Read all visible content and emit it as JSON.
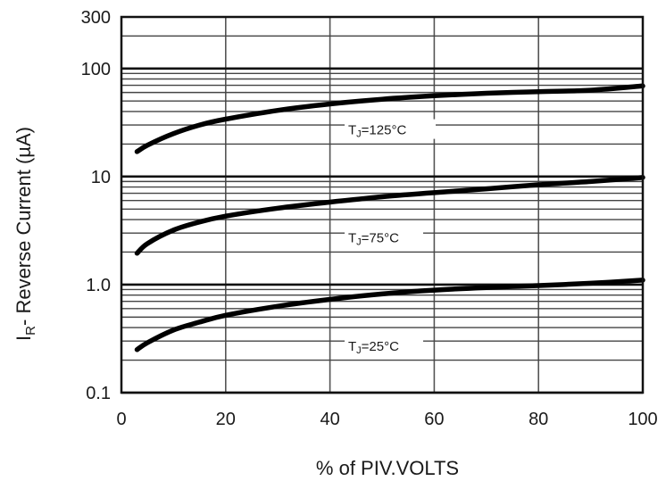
{
  "chart_data": {
    "type": "line",
    "xlabel": "% of PIV.VOLTS",
    "ylabel_main": "I",
    "ylabel_sub": "R",
    "ylabel_rest": "- Reverse Current (µA)",
    "xlim": [
      0,
      100
    ],
    "ylim": [
      0.1,
      300
    ],
    "y_scale": "log",
    "grid": true,
    "x_ticks": [
      "0",
      "20",
      "40",
      "60",
      "80",
      "100"
    ],
    "y_ticks": [
      "0.1",
      "1.0",
      "10",
      "100",
      "300"
    ],
    "series": [
      {
        "annotation_main": "T",
        "annotation_sub": "J",
        "annotation_rest": "=125°C",
        "x": [
          3,
          5,
          10,
          15,
          20,
          30,
          40,
          50,
          60,
          70,
          80,
          90,
          100
        ],
        "y": [
          17,
          19.5,
          25,
          30,
          34,
          41,
          47,
          52,
          56,
          59,
          61,
          63,
          69
        ]
      },
      {
        "annotation_main": "T",
        "annotation_sub": "J",
        "annotation_rest": "=75°C",
        "x": [
          3,
          5,
          10,
          15,
          20,
          30,
          40,
          50,
          60,
          70,
          80,
          90,
          100
        ],
        "y": [
          1.95,
          2.4,
          3.2,
          3.8,
          4.3,
          5.1,
          5.8,
          6.5,
          7.1,
          7.7,
          8.4,
          9.0,
          9.8
        ]
      },
      {
        "annotation_main": "T",
        "annotation_sub": "J",
        "annotation_rest": "=25°C",
        "x": [
          3,
          5,
          10,
          15,
          20,
          30,
          40,
          50,
          60,
          70,
          80,
          90,
          100
        ],
        "y": [
          0.25,
          0.29,
          0.38,
          0.45,
          0.52,
          0.63,
          0.73,
          0.82,
          0.89,
          0.94,
          0.98,
          1.03,
          1.1
        ]
      }
    ]
  }
}
